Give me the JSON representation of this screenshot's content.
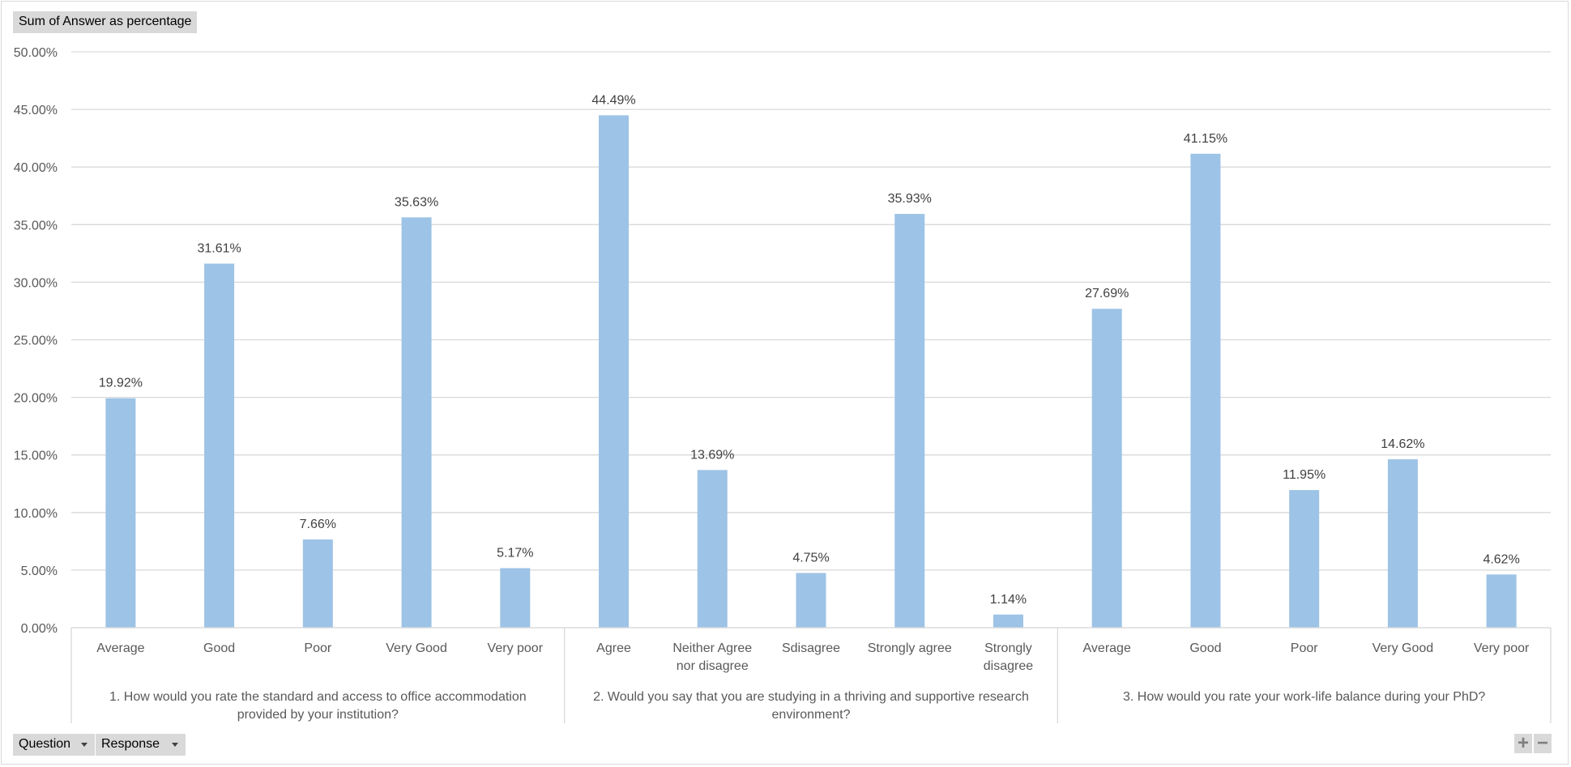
{
  "value_field": "Sum of Answer as percentage",
  "filters": {
    "question": "Question",
    "response": "Response"
  },
  "zoom": {
    "in": "+",
    "out": "−"
  },
  "colors": {
    "bar": "#9dc3e6",
    "grid": "#d9d9d9",
    "axis_text": "#595959",
    "label_text": "#404040"
  },
  "chart_data": {
    "type": "bar",
    "ylim": [
      0,
      50
    ],
    "yticks": [
      "0.00%",
      "5.00%",
      "10.00%",
      "15.00%",
      "20.00%",
      "25.00%",
      "30.00%",
      "35.00%",
      "40.00%",
      "45.00%",
      "50.00%"
    ],
    "grid": true,
    "groups": [
      {
        "question": "1. How would you rate the standard and access to office accommodation provided by your institution?",
        "question_lines": [
          "1. How would you rate the standard and access to office accommodation",
          "provided by your institution?"
        ],
        "categories": [
          "Average",
          "Good",
          "Poor",
          "Very Good",
          "Very poor"
        ],
        "values": [
          19.92,
          31.61,
          7.66,
          35.63,
          5.17
        ],
        "labels": [
          "19.92%",
          "31.61%",
          "7.66%",
          "35.63%",
          "5.17%"
        ]
      },
      {
        "question": "2. Would you say that you are studying in a thriving and supportive research environment?",
        "question_lines": [
          "2. Would you say that you are studying in a thriving and supportive research",
          "environment?"
        ],
        "categories": [
          "Agree",
          "Neither Agree nor disagree",
          "Sdisagree",
          "Strongly agree",
          "Strongly disagree"
        ],
        "values": [
          44.49,
          13.69,
          4.75,
          35.93,
          1.14
        ],
        "labels": [
          "44.49%",
          "13.69%",
          "4.75%",
          "35.93%",
          "1.14%"
        ]
      },
      {
        "question": "3. How would you rate your work-life balance during your PhD?",
        "question_lines": [
          "3. How would you rate your work-life balance during your PhD?"
        ],
        "categories": [
          "Average",
          "Good",
          "Poor",
          "Very Good",
          "Very poor"
        ],
        "values": [
          27.69,
          41.15,
          11.95,
          14.62,
          4.62
        ],
        "labels": [
          "27.69%",
          "41.15%",
          "11.95%",
          "14.62%",
          "4.62%"
        ]
      }
    ]
  }
}
